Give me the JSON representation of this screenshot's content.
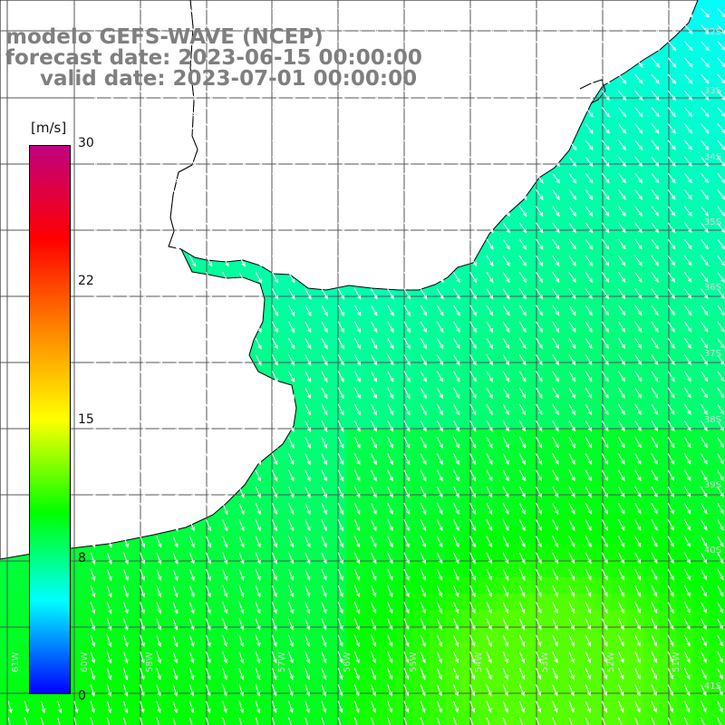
{
  "title": {
    "model": "modelo GEFS-WAVE (NCEP)",
    "forecast": "forecast date: 2023-06-15 00:00:00",
    "valid": "valid date: 2023-07-01 00:00:00"
  },
  "colorbar": {
    "units": "[m/s]",
    "ticks": [
      "30",
      "22",
      "15",
      "8",
      "0"
    ],
    "colors": [
      "#0000ff",
      "#00ffff",
      "#00ff00",
      "#ffff00",
      "#ff8000",
      "#ff0000",
      "#c00080"
    ]
  },
  "grid": {
    "lat_labels": [
      "32S",
      "33S",
      "34S",
      "35S",
      "36S",
      "37S",
      "38S",
      "39S",
      "40S",
      "41S"
    ],
    "lon_labels": [
      "61W",
      "60W",
      "58W",
      "57W",
      "56W",
      "55W",
      "54W",
      "53W",
      "52W",
      "51W"
    ]
  },
  "colors": {
    "land": "#ffffff",
    "coast": "#000000",
    "grid": "#555555",
    "arrow": "#ffffff",
    "title": "#7f7f7f"
  }
}
